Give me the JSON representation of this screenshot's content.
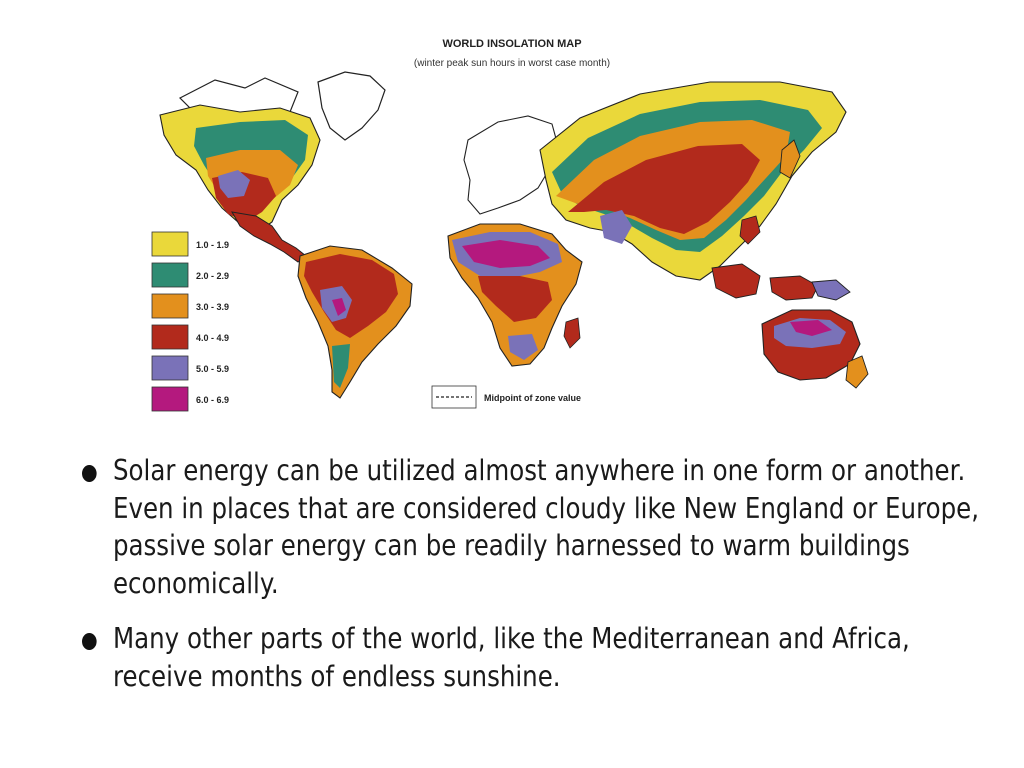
{
  "map": {
    "title": "WORLD INSOLATION MAP",
    "subtitle": "(winter peak sun hours in worst case month)",
    "legend": [
      {
        "label": "1.0 - 1.9",
        "color": "#ead83a"
      },
      {
        "label": "2.0 - 2.9",
        "color": "#2e8c73"
      },
      {
        "label": "3.0 - 3.9",
        "color": "#e3901d"
      },
      {
        "label": "4.0 - 4.9",
        "color": "#b22a1c"
      },
      {
        "label": "5.0 - 5.9",
        "color": "#7a72b8"
      },
      {
        "label": "6.0 - 6.9",
        "color": "#b4197e"
      }
    ],
    "midpoint_label": "Midpoint of zone value"
  },
  "bullets": [
    "Solar energy can be utilized almost anywhere in one form or another. Even in places that are considered cloudy like New England or Europe, passive solar energy can be readily harnessed to warm buildings economically.",
    "Many other parts of the world, like the Mediterranean and Africa, receive months of endless sunshine."
  ]
}
